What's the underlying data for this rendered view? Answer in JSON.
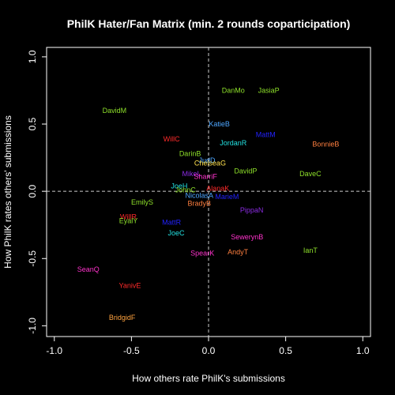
{
  "chart_data": {
    "type": "scatter",
    "title": "PhilK Hater/Fan Matrix (min. 2 rounds coparticipation)",
    "xlabel": "How others rate PhilK's submissions",
    "ylabel": "How PhilK rates others' submissions",
    "xlim": [
      -1.05,
      1.05
    ],
    "ylim": [
      -1.08,
      1.07
    ],
    "xticks": [
      -1.0,
      -0.5,
      0.0,
      0.5,
      1.0
    ],
    "yticks": [
      -1.0,
      -0.5,
      0.0,
      0.5,
      1.0
    ],
    "xtick_labels": [
      "-1.0",
      "-0.5",
      "0.0",
      "0.5",
      "1.0"
    ],
    "ytick_labels": [
      "-1.0",
      "-0.5",
      "0.0",
      "0.5",
      "1.0"
    ],
    "grid": false,
    "reference_lines": {
      "x": 0,
      "y": 0,
      "style": "dashed",
      "color": "#cccccc"
    },
    "points": [
      {
        "label": "DanMo",
        "x": 0.16,
        "y": 0.75,
        "color": "#8ee02a"
      },
      {
        "label": "JasiaP",
        "x": 0.39,
        "y": 0.75,
        "color": "#8ee02a"
      },
      {
        "label": "DavidM",
        "x": -0.61,
        "y": 0.6,
        "color": "#8ee02a"
      },
      {
        "label": "KatieB",
        "x": 0.07,
        "y": 0.5,
        "color": "#4da6ff"
      },
      {
        "label": "MattM",
        "x": 0.37,
        "y": 0.42,
        "color": "#2222ff"
      },
      {
        "label": "WillC",
        "x": -0.24,
        "y": 0.39,
        "color": "#ff2a2a"
      },
      {
        "label": "JordanR",
        "x": 0.16,
        "y": 0.36,
        "color": "#22e0e0"
      },
      {
        "label": "BonnieB",
        "x": 0.76,
        "y": 0.35,
        "color": "#ff7f3f"
      },
      {
        "label": "DarinB",
        "x": -0.12,
        "y": 0.28,
        "color": "#8ee02a"
      },
      {
        "label": "JudD",
        "x": -0.01,
        "y": 0.23,
        "color": "#4da6ff"
      },
      {
        "label": "ChelseaG",
        "x": 0.01,
        "y": 0.21,
        "color": "#ffe14d"
      },
      {
        "label": "DavidP",
        "x": 0.24,
        "y": 0.15,
        "color": "#8ee02a"
      },
      {
        "label": "DaveC",
        "x": 0.66,
        "y": 0.13,
        "color": "#8ee02a"
      },
      {
        "label": "MikeL",
        "x": -0.11,
        "y": 0.13,
        "color": "#8a2be2"
      },
      {
        "label": "SharriF",
        "x": -0.02,
        "y": 0.11,
        "color": "#ff33cc"
      },
      {
        "label": "JoeH",
        "x": -0.19,
        "y": 0.04,
        "color": "#22e0e0"
      },
      {
        "label": "AlanaK",
        "x": 0.06,
        "y": 0.02,
        "color": "#ff2a2a"
      },
      {
        "label": "JohnC",
        "x": -0.15,
        "y": 0.01,
        "color": "#8ee02a"
      },
      {
        "label": "NicolasA",
        "x": -0.06,
        "y": -0.03,
        "color": "#4da6ff"
      },
      {
        "label": "MarieM",
        "x": 0.12,
        "y": -0.04,
        "color": "#2222ff"
      },
      {
        "label": "EmilyS",
        "x": -0.43,
        "y": -0.08,
        "color": "#8ee02a"
      },
      {
        "label": "BradyB",
        "x": -0.06,
        "y": -0.09,
        "color": "#ff7f3f"
      },
      {
        "label": "PippaN",
        "x": 0.28,
        "y": -0.14,
        "color": "#8a2be2"
      },
      {
        "label": "WillR",
        "x": -0.52,
        "y": -0.19,
        "color": "#ff2a2a"
      },
      {
        "label": "EyalY",
        "x": -0.52,
        "y": -0.22,
        "color": "#8ee02a"
      },
      {
        "label": "MattR",
        "x": -0.24,
        "y": -0.23,
        "color": "#2222ff"
      },
      {
        "label": "JoeC",
        "x": -0.21,
        "y": -0.31,
        "color": "#22e0e0"
      },
      {
        "label": "SewerynB",
        "x": 0.25,
        "y": -0.34,
        "color": "#ff33cc"
      },
      {
        "label": "IanT",
        "x": 0.66,
        "y": -0.44,
        "color": "#8ee02a"
      },
      {
        "label": "AndyT",
        "x": 0.19,
        "y": -0.45,
        "color": "#ff7f3f"
      },
      {
        "label": "SpearK",
        "x": -0.04,
        "y": -0.46,
        "color": "#ff33cc"
      },
      {
        "label": "SeanQ",
        "x": -0.78,
        "y": -0.58,
        "color": "#ff33cc"
      },
      {
        "label": "YanivE",
        "x": -0.51,
        "y": -0.7,
        "color": "#ff2a2a"
      },
      {
        "label": "BridgidF",
        "x": -0.56,
        "y": -0.94,
        "color": "#ffa23f"
      }
    ]
  }
}
